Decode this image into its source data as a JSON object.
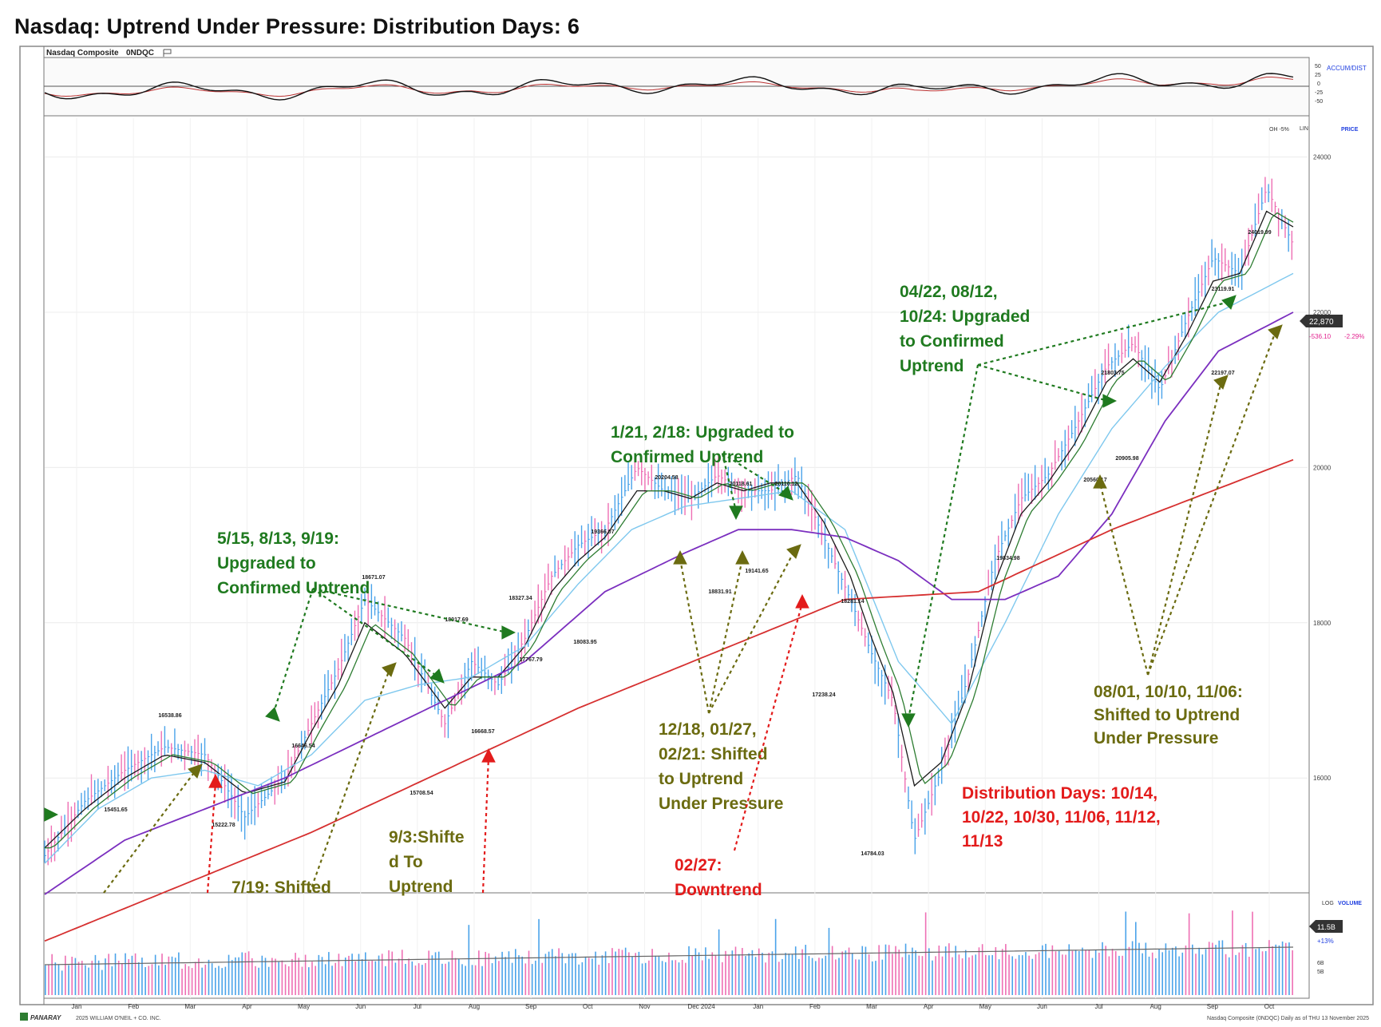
{
  "title": "Nasdaq: Uptrend Under Pressure: Distribution Days: 6",
  "colors": {
    "ann_green": "#1f7a1f",
    "ann_olive": "#6b6b10",
    "ann_red": "#e31b1b",
    "ma10": "#1a1a1a",
    "ma21": "#2e7d32",
    "ma50": "#7fc8ee",
    "ma100": "#7b2fbf",
    "ma200": "#d63030",
    "bar_up": "#4aa3ea",
    "bar_down": "#ee6fb4",
    "accent_blue": "#1f3fe0"
  },
  "top_panel": {
    "symbol": "Nasdaq Composite",
    "ticker": "0NDQC",
    "label": "ACCUM/DIST",
    "ticks": [
      "50",
      "25",
      "0",
      "-25",
      "-50"
    ]
  },
  "price_panel": {
    "labels": {
      "oh": "OH -5%",
      "lin": "LIN",
      "price": "PRICE"
    },
    "last_price": "22,870",
    "change": "-536.10",
    "change_pct": "-2.29%"
  },
  "volume_panel": {
    "labels": {
      "log": "LOG",
      "volume": "VOLUME"
    },
    "value": "11.5B",
    "pct": "+13%",
    "ticks": [
      "6B",
      "5B"
    ]
  },
  "footer": {
    "logo": "PANARAY",
    "copyright": "2025 WILLIAM O'NEIL + CO. INC.",
    "right": "Nasdaq Composite (0NDQC) Daily as of THU 13 November 2025"
  },
  "annotations": {
    "a1": [
      "5/15, 8/13, 9/19:",
      "Upgraded to",
      "Confirmed Uptrend"
    ],
    "a2": [
      "1/21, 2/18: Upgraded to",
      "Confirmed Uptrend"
    ],
    "a3": [
      "04/22, 08/12,",
      "10/24: Upgraded",
      "to Confirmed",
      "Uptrend"
    ],
    "a4": [
      "12/18, 01/27,",
      "02/21: Shifted",
      "to Uptrend",
      "Under Pressure"
    ],
    "a5": [
      "08/01, 10/10, 11/06:",
      "Shifted to Uptrend",
      "Under Pressure"
    ],
    "a6": [
      "Distribution Days: 10/14,",
      "10/22, 10/30, 11/06, 11/12,",
      "11/13"
    ],
    "a7": [
      "9/3:Shifte",
      "d To",
      "Uptrend"
    ],
    "a8": [
      "7/19: Shifted"
    ],
    "a9": [
      "02/27:",
      "Downtrend"
    ]
  },
  "chart_data": {
    "type": "line",
    "title": "Nasdaq Composite (0NDQC) Daily",
    "xlabel": "",
    "ylabel": "",
    "ylim": [
      14500,
      24500
    ],
    "y_ticks": [
      16000,
      18000,
      20000,
      22000,
      24000
    ],
    "x_ticks": [
      "Jan",
      "Feb",
      "Mar",
      "Apr",
      "May",
      "Jun",
      "Jul",
      "Aug",
      "Sep",
      "Oct",
      "Nov",
      "Dec 2024",
      "Jan",
      "Feb",
      "Mar",
      "Apr",
      "May",
      "Jun",
      "Jul",
      "Aug",
      "Sep",
      "Oct"
    ],
    "price_labels": [
      "16538.86",
      "15451.65",
      "15222.78",
      "16646.54",
      "18671.07",
      "15708.54",
      "18017.69",
      "18327.34",
      "16668.57",
      "17767.79",
      "19366.07",
      "18083.95",
      "20204.58",
      "20118.61",
      "20110.12",
      "18831.91",
      "19141.65",
      "18281.14",
      "17238.24",
      "14784.03",
      "19834.98",
      "21803.75",
      "20905.98",
      "20560.17",
      "23119.91",
      "22197.07",
      "24019.99"
    ],
    "series": [
      {
        "name": "Nasdaq Composite",
        "x": [
          0,
          15,
          30,
          45,
          60,
          75,
          90,
          100,
          110,
          120,
          135,
          150,
          160,
          170,
          180,
          190,
          200,
          210,
          222,
          232,
          242,
          252,
          262,
          272,
          282,
          292,
          302,
          310,
          318,
          326,
          336,
          346,
          356,
          366,
          376,
          386,
          392,
          398,
          408,
          418,
          428,
          438,
          448,
          458,
          468
        ],
        "values": [
          15000,
          15700,
          16100,
          16400,
          16300,
          15500,
          16000,
          16700,
          17400,
          18300,
          17800,
          16700,
          17500,
          17200,
          17800,
          18600,
          19000,
          19200,
          20000,
          19700,
          19600,
          19900,
          19700,
          19700,
          19900,
          19100,
          18300,
          17600,
          17000,
          15200,
          16100,
          17300,
          18800,
          19600,
          19900,
          20500,
          20900,
          21300,
          21600,
          21000,
          21900,
          22700,
          22500,
          23600,
          22870
        ]
      },
      {
        "name": "",
        "x": [
          0,
          15,
          30,
          45,
          60,
          75,
          90,
          100,
          110,
          120,
          135,
          150,
          160,
          170,
          180,
          190,
          200,
          210,
          222,
          232,
          242,
          252,
          262,
          272,
          282,
          292,
          302,
          310,
          318,
          326,
          336,
          346,
          356,
          366,
          376,
          386,
          392,
          398,
          408,
          418,
          428,
          438,
          448,
          458,
          468
        ],
        "values": [
          15100,
          15600,
          16000,
          16300,
          16200,
          15800,
          15950,
          16600,
          17200,
          18000,
          17600,
          16900,
          17300,
          17300,
          17700,
          18400,
          18800,
          19100,
          19700,
          19700,
          19600,
          19800,
          19700,
          19800,
          19800,
          19300,
          18600,
          17800,
          17100,
          15900,
          16200,
          17100,
          18500,
          19400,
          19800,
          20300,
          20700,
          21100,
          21400,
          21100,
          21700,
          22400,
          22500,
          23300,
          23100
        ]
      },
      {
        "name": "",
        "x": [
          0,
          20,
          40,
          60,
          80,
          100,
          120,
          140,
          160,
          180,
          200,
          220,
          240,
          260,
          280,
          300,
          320,
          340,
          360,
          380,
          400,
          420,
          440,
          468
        ],
        "values": [
          14900,
          15600,
          16000,
          16100,
          15900,
          16300,
          17000,
          17200,
          17300,
          17700,
          18500,
          19200,
          19500,
          19600,
          19700,
          19200,
          17500,
          16700,
          18000,
          19400,
          20500,
          21300,
          22000,
          22500
        ]
      },
      {
        "name": "",
        "x": [
          0,
          30,
          60,
          90,
          120,
          150,
          180,
          210,
          240,
          260,
          280,
          300,
          320,
          340,
          360,
          380,
          400,
          420,
          440,
          468
        ],
        "values": [
          14500,
          15200,
          15600,
          16000,
          16500,
          17000,
          17500,
          18400,
          18900,
          19200,
          19200,
          19100,
          18800,
          18300,
          18300,
          18600,
          19400,
          20600,
          21500,
          22000
        ]
      },
      {
        "name": "",
        "x": [
          0,
          50,
          100,
          150,
          200,
          250,
          300,
          350,
          400,
          468
        ],
        "values": [
          13900,
          14600,
          15300,
          16100,
          16900,
          17600,
          18300,
          18400,
          19200,
          20100
        ]
      }
    ]
  }
}
